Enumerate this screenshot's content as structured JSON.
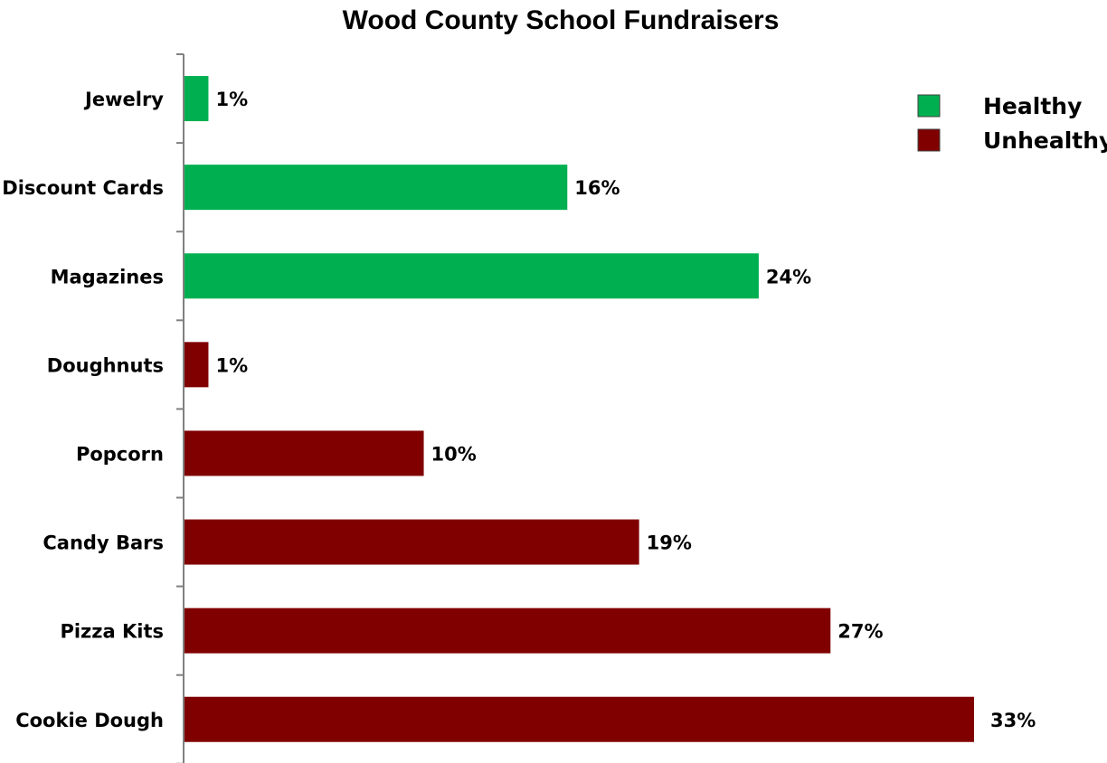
{
  "chart_data": {
    "type": "bar",
    "orientation": "horizontal",
    "title": "Wood County School Fundraisers",
    "xlabel": "",
    "ylabel": "",
    "xlim": [
      0,
      33
    ],
    "grid": false,
    "legend_position": "top-right",
    "categories": [
      "Jewelry",
      "Discount Cards",
      "Magazines",
      "Doughnuts",
      "Popcorn",
      "Candy Bars",
      "Pizza Kits",
      "Cookie Dough"
    ],
    "values": [
      1,
      16,
      24,
      1,
      10,
      19,
      27,
      33
    ],
    "value_labels": [
      "1%",
      "16%",
      "24%",
      "1%",
      "10%",
      "19%",
      "27%",
      "33%"
    ],
    "groups": [
      "Healthy",
      "Healthy",
      "Healthy",
      "Unhealthy",
      "Unhealthy",
      "Unhealthy",
      "Unhealthy",
      "Unhealthy"
    ],
    "legend": [
      {
        "name": "Healthy",
        "color": "#00b050"
      },
      {
        "name": "Unhealthy",
        "color": "#800000"
      }
    ]
  }
}
